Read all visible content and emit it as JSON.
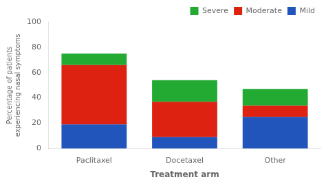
{
  "chart_data": {
    "type": "bar",
    "stacked": true,
    "categories": [
      "Paclitaxel",
      "Docetaxel",
      "Other"
    ],
    "series": [
      {
        "name": "Mild",
        "color": "#2255bb",
        "values": [
          19,
          9,
          25
        ]
      },
      {
        "name": "Moderate",
        "color": "#dd2211",
        "values": [
          47,
          28,
          9
        ]
      },
      {
        "name": "Severe",
        "color": "#22aa33",
        "values": [
          9,
          17,
          13
        ]
      }
    ],
    "xlabel": "Treatment arm",
    "ylabel": "Percentage of patients\nexperiencing nasal symptoms",
    "ylim": [
      0,
      100
    ],
    "yticks": [
      0,
      20,
      40,
      60,
      80,
      100
    ],
    "grid": false,
    "legend": "upper right"
  }
}
